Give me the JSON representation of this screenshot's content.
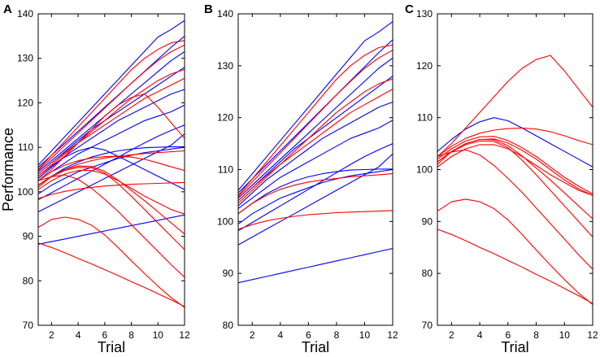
{
  "colors": {
    "red": "#ff0000",
    "blue": "#0000ff"
  },
  "chart_data": [
    {
      "type": "line",
      "panel": "A",
      "xlabel": "Trial",
      "ylabel": "Performance",
      "xlim": [
        1,
        12
      ],
      "ylim": [
        70,
        140
      ],
      "xticks": [
        2,
        4,
        6,
        8,
        10,
        12
      ],
      "yticks": [
        70,
        80,
        90,
        100,
        110,
        120,
        130,
        140
      ],
      "x": [
        1,
        2,
        3,
        4,
        5,
        6,
        7,
        8,
        9,
        10,
        11,
        12
      ],
      "series": [
        {
          "color": "blue",
          "values": [
            106,
            109.2,
            112.4,
            115.6,
            118.8,
            122,
            125.2,
            128.4,
            131.6,
            134.8,
            136.5,
            138.5
          ]
        },
        {
          "color": "blue",
          "values": [
            105.5,
            108.2,
            110.9,
            113.6,
            116.3,
            119,
            121.7,
            124.4,
            127.1,
            129.8,
            132.5,
            135
          ]
        },
        {
          "color": "blue",
          "values": [
            104.5,
            107,
            109.5,
            112,
            114.5,
            117,
            119.5,
            122,
            124.5,
            127,
            129.5,
            131.5
          ]
        },
        {
          "color": "blue",
          "values": [
            104,
            106.5,
            109,
            111.5,
            114,
            116,
            118,
            120,
            122,
            124,
            126,
            128
          ]
        },
        {
          "color": "blue",
          "values": [
            103,
            105.5,
            108,
            110,
            112,
            114,
            116,
            117.5,
            119,
            120.5,
            122,
            123
          ]
        },
        {
          "color": "blue",
          "values": [
            102.5,
            104.5,
            106.5,
            108.5,
            110,
            111.5,
            113,
            114.5,
            116,
            117,
            118,
            119.5
          ]
        },
        {
          "color": "blue",
          "values": [
            101.5,
            103.5,
            105.3,
            106.7,
            107.8,
            108.6,
            109.2,
            109.6,
            109.9,
            110,
            110.1,
            110.1
          ]
        },
        {
          "color": "blue",
          "values": [
            99.5,
            101.5,
            103,
            104.5,
            105.5,
            106.5,
            107.5,
            108.2,
            108.8,
            109.2,
            109.6,
            110
          ]
        },
        {
          "color": "blue",
          "values": [
            98.2,
            99.8,
            101.4,
            103,
            104.6,
            106.2,
            107.8,
            109.4,
            111,
            112.5,
            113.8,
            115
          ]
        },
        {
          "color": "blue",
          "values": [
            95.5,
            97,
            98.5,
            100,
            101.5,
            103,
            104.5,
            106,
            107.5,
            109,
            110.5,
            113
          ]
        },
        {
          "color": "blue",
          "values": [
            103.5,
            105.8,
            107.8,
            109.2,
            110,
            109.4,
            108,
            106.5,
            105,
            103.5,
            102,
            100.5
          ]
        },
        {
          "color": "blue",
          "values": [
            88.2,
            88.8,
            89.4,
            90,
            90.6,
            91.2,
            91.8,
            92.4,
            93,
            93.6,
            94.2,
            94.8
          ]
        },
        {
          "color": "red",
          "values": [
            105,
            108.2,
            111.4,
            114.6,
            117.8,
            121,
            124.2,
            127.4,
            130,
            132,
            133.5,
            134
          ]
        },
        {
          "color": "red",
          "values": [
            104.8,
            107.6,
            110.4,
            113.2,
            116,
            118.8,
            121.6,
            124.4,
            127,
            129.5,
            131.5,
            133
          ]
        },
        {
          "color": "red",
          "values": [
            103.5,
            106,
            108.5,
            111,
            113.5,
            116,
            118.5,
            121,
            123,
            125,
            126.5,
            127.5
          ]
        },
        {
          "color": "red",
          "values": [
            104,
            106.5,
            108.8,
            111,
            113,
            115,
            117,
            119,
            121,
            122.5,
            124,
            125.5
          ]
        },
        {
          "color": "red",
          "values": [
            102.5,
            105,
            108,
            111,
            114,
            117,
            119.5,
            121.2,
            122,
            119,
            115.5,
            112
          ]
        },
        {
          "color": "red",
          "values": [
            102.5,
            104.5,
            106,
            107,
            107.6,
            107.9,
            108,
            107.8,
            107.3,
            106.5,
            105.6,
            104.8
          ]
        },
        {
          "color": "red",
          "values": [
            101.5,
            103.5,
            105,
            106.2,
            107,
            107.6,
            108,
            108.3,
            108.6,
            108.8,
            109,
            109.2
          ]
        },
        {
          "color": "red",
          "values": [
            101,
            103.5,
            105,
            105.8,
            105.7,
            104.6,
            102.6,
            100.3,
            98,
            95.5,
            93,
            90.5
          ]
        },
        {
          "color": "red",
          "values": [
            101.5,
            103.4,
            104.8,
            105.5,
            105.4,
            104.2,
            101.8,
            99,
            96,
            93,
            90,
            87
          ]
        },
        {
          "color": "red",
          "values": [
            98.5,
            99.4,
            100.1,
            100.6,
            101,
            101.3,
            101.5,
            101.7,
            101.8,
            101.9,
            102,
            102.1
          ]
        },
        {
          "color": "red",
          "values": [
            102.5,
            103.4,
            103.8,
            102.8,
            100.8,
            98.3,
            95.6,
            92.6,
            89.6,
            86.6,
            83.6,
            80.8
          ]
        },
        {
          "color": "red",
          "values": [
            100.5,
            102.5,
            104,
            104.8,
            104.8,
            104,
            102.5,
            100.8,
            99,
            97.5,
            96,
            95
          ]
        },
        {
          "color": "red",
          "values": [
            92,
            93.8,
            94.3,
            93.8,
            92.5,
            90.3,
            87.5,
            84.5,
            81.6,
            78.8,
            76.2,
            74
          ]
        },
        {
          "color": "red",
          "values": [
            88.5,
            87.5,
            86.3,
            85,
            83.8,
            82.5,
            81.2,
            79.8,
            78.5,
            77.1,
            75.7,
            74.2
          ]
        }
      ]
    },
    {
      "type": "line",
      "panel": "B",
      "xlabel": "Trial",
      "ylabel": "",
      "xlim": [
        1,
        12
      ],
      "ylim": [
        80,
        140
      ],
      "xticks": [
        2,
        4,
        6,
        8,
        10,
        12
      ],
      "yticks": [
        80,
        90,
        100,
        110,
        120,
        130,
        140
      ],
      "x": [
        1,
        2,
        3,
        4,
        5,
        6,
        7,
        8,
        9,
        10,
        11,
        12
      ],
      "series": [
        {
          "color": "blue",
          "values": [
            106,
            109.2,
            112.4,
            115.6,
            118.8,
            122,
            125.2,
            128.4,
            131.6,
            134.8,
            136.5,
            138.5
          ]
        },
        {
          "color": "blue",
          "values": [
            105.5,
            108.2,
            110.9,
            113.6,
            116.3,
            119,
            121.7,
            124.4,
            127.1,
            129.8,
            132.5,
            135
          ]
        },
        {
          "color": "blue",
          "values": [
            104.5,
            107,
            109.5,
            112,
            114.5,
            117,
            119.5,
            122,
            124.5,
            127,
            129.5,
            131.5
          ]
        },
        {
          "color": "blue",
          "values": [
            104,
            106.5,
            109,
            111.5,
            114,
            116,
            118,
            120,
            122,
            124,
            126,
            128
          ]
        },
        {
          "color": "blue",
          "values": [
            103,
            105.5,
            108,
            110,
            112,
            114,
            116,
            117.5,
            119,
            120.5,
            122,
            123
          ]
        },
        {
          "color": "blue",
          "values": [
            102.5,
            104.5,
            106.5,
            108.5,
            110,
            111.5,
            113,
            114.5,
            116,
            117,
            118,
            119.5
          ]
        },
        {
          "color": "blue",
          "values": [
            101.5,
            103.5,
            105.3,
            106.7,
            107.8,
            108.6,
            109.2,
            109.6,
            109.9,
            110,
            110.1,
            110.1
          ]
        },
        {
          "color": "blue",
          "values": [
            99.5,
            101.5,
            103,
            104.5,
            105.5,
            106.5,
            107.5,
            108.2,
            108.8,
            109.2,
            109.6,
            110
          ]
        },
        {
          "color": "blue",
          "values": [
            98.2,
            99.8,
            101.4,
            103,
            104.6,
            106.2,
            107.8,
            109.4,
            111,
            112.5,
            113.8,
            115
          ]
        },
        {
          "color": "blue",
          "values": [
            95.5,
            97,
            98.5,
            100,
            101.5,
            103,
            104.5,
            106,
            107.5,
            109,
            110.5,
            113
          ]
        },
        {
          "color": "blue",
          "values": [
            88.2,
            88.8,
            89.4,
            90,
            90.6,
            91.2,
            91.8,
            92.4,
            93,
            93.6,
            94.2,
            94.8
          ]
        },
        {
          "color": "red",
          "values": [
            105,
            108.2,
            111.4,
            114.6,
            117.8,
            121,
            124.2,
            127.4,
            130,
            132,
            133.5,
            134
          ]
        },
        {
          "color": "red",
          "values": [
            104.8,
            107.6,
            110.4,
            113.2,
            116,
            118.8,
            121.6,
            124.4,
            127,
            129.5,
            131.5,
            133
          ]
        },
        {
          "color": "red",
          "values": [
            103.5,
            106,
            108.5,
            111,
            113.5,
            116,
            118.5,
            121,
            123,
            125,
            126.5,
            127.5
          ]
        },
        {
          "color": "red",
          "values": [
            104,
            106.5,
            108.8,
            111,
            113,
            115,
            117,
            119,
            121,
            122.5,
            124,
            125.5
          ]
        },
        {
          "color": "red",
          "values": [
            101.5,
            103.5,
            105,
            106.2,
            107,
            107.6,
            108,
            108.3,
            108.6,
            108.8,
            109,
            109.2
          ]
        },
        {
          "color": "red",
          "values": [
            98.5,
            99.4,
            100.1,
            100.6,
            101,
            101.3,
            101.5,
            101.7,
            101.8,
            101.9,
            102,
            102.1
          ]
        }
      ]
    },
    {
      "type": "line",
      "panel": "C",
      "xlabel": "Trial",
      "ylabel": "",
      "xlim": [
        1,
        12
      ],
      "ylim": [
        70,
        130
      ],
      "xticks": [
        2,
        4,
        6,
        8,
        10,
        12
      ],
      "yticks": [
        70,
        80,
        90,
        100,
        110,
        120,
        130
      ],
      "x": [
        1,
        2,
        3,
        4,
        5,
        6,
        7,
        8,
        9,
        10,
        11,
        12
      ],
      "series": [
        {
          "color": "blue",
          "values": [
            103.5,
            105.8,
            107.8,
            109.2,
            110,
            109.4,
            108,
            106.5,
            105,
            103.5,
            102,
            100.5
          ]
        },
        {
          "color": "red",
          "values": [
            102.5,
            105,
            108,
            111,
            114,
            117,
            119.5,
            121.2,
            122,
            119,
            115.5,
            112
          ]
        },
        {
          "color": "red",
          "values": [
            102.5,
            104.5,
            106,
            107,
            107.6,
            107.9,
            108,
            107.8,
            107.3,
            106.5,
            105.6,
            104.8
          ]
        },
        {
          "color": "red",
          "values": [
            102,
            104,
            105.5,
            106.3,
            106.4,
            105.6,
            104.2,
            102.5,
            100.5,
            98.5,
            96.8,
            95.3
          ]
        },
        {
          "color": "red",
          "values": [
            101.5,
            103.5,
            105,
            105.8,
            105.9,
            105.1,
            103.7,
            102,
            100,
            98,
            96.3,
            95
          ]
        },
        {
          "color": "red",
          "values": [
            101,
            103.5,
            105,
            105.8,
            105.7,
            104.6,
            102.6,
            100.3,
            98,
            95.5,
            93,
            90.5
          ]
        },
        {
          "color": "red",
          "values": [
            101.5,
            103.4,
            104.8,
            105.5,
            105.4,
            104.2,
            101.8,
            99,
            96,
            93,
            90,
            87
          ]
        },
        {
          "color": "red",
          "values": [
            102.5,
            103.4,
            103.8,
            102.8,
            100.8,
            98.3,
            95.6,
            92.6,
            89.6,
            86.6,
            83.6,
            80.8
          ]
        },
        {
          "color": "red",
          "values": [
            100.5,
            102.5,
            104,
            104.8,
            104.8,
            104,
            102.5,
            100.8,
            99,
            97.5,
            96,
            95
          ]
        },
        {
          "color": "red",
          "values": [
            92,
            93.8,
            94.3,
            93.8,
            92.5,
            90.3,
            87.5,
            84.5,
            81.6,
            78.8,
            76.2,
            74
          ]
        },
        {
          "color": "red",
          "values": [
            88.5,
            87.5,
            86.3,
            85,
            83.8,
            82.5,
            81.2,
            79.8,
            78.5,
            77.1,
            75.7,
            74.2
          ]
        }
      ]
    }
  ]
}
